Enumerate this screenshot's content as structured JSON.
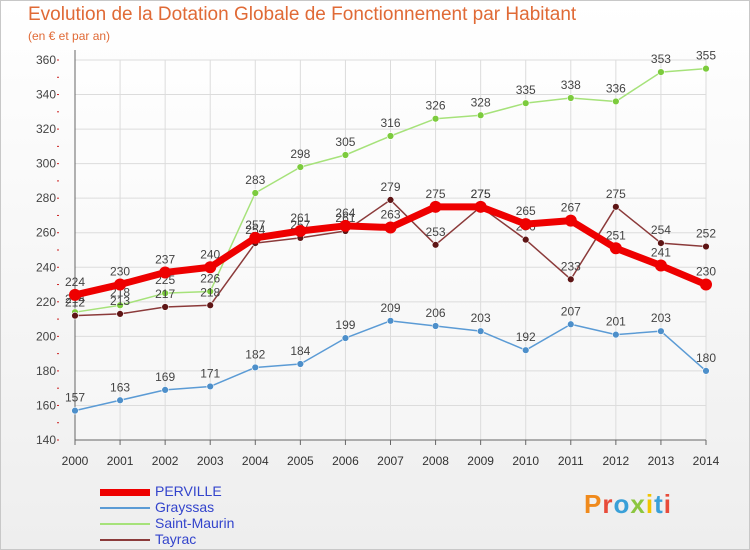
{
  "title": "Evolution de la Dotation Globale de Fonctionnement par Habitant",
  "subtitle": "(en € et par an)",
  "logo_text": "Proxiti",
  "chart_data": {
    "type": "line",
    "title": "Evolution de la Dotation Globale de Fonctionnement par Habitant",
    "subtitle": "(en € et par an)",
    "x": [
      2000,
      2001,
      2002,
      2003,
      2004,
      2005,
      2006,
      2007,
      2008,
      2009,
      2010,
      2011,
      2012,
      2013,
      2014
    ],
    "ylim": [
      140,
      360
    ],
    "yticks": [
      140,
      160,
      180,
      200,
      220,
      240,
      260,
      280,
      300,
      320,
      340,
      360
    ],
    "grid": true,
    "legend": "bottom-left",
    "series": [
      {
        "name": "Grayssas",
        "color": "#5b9bd5",
        "marker": "#4d8fca",
        "values": [
          157,
          163,
          169,
          171,
          182,
          184,
          199,
          209,
          206,
          203,
          192,
          207,
          201,
          203,
          180
        ]
      },
      {
        "name": "Saint-Maurin",
        "color": "#a6e27a",
        "marker": "#7ccb3d",
        "values": [
          214,
          218,
          225,
          226,
          283,
          298,
          305,
          316,
          326,
          328,
          335,
          338,
          336,
          353,
          355
        ]
      },
      {
        "name": "Tayrac",
        "color": "#8b3a3a",
        "marker": "#5e1515",
        "values": [
          212,
          213,
          217,
          218,
          254,
          257,
          261,
          279,
          253,
          275,
          256,
          233,
          275,
          254,
          252
        ]
      },
      {
        "name": "PERVILLE",
        "color": "#ee0000",
        "marker": "#ee0000",
        "values": [
          224,
          230,
          237,
          240,
          257,
          261,
          264,
          263,
          275,
          275,
          265,
          267,
          251,
          241,
          230
        ]
      }
    ]
  }
}
